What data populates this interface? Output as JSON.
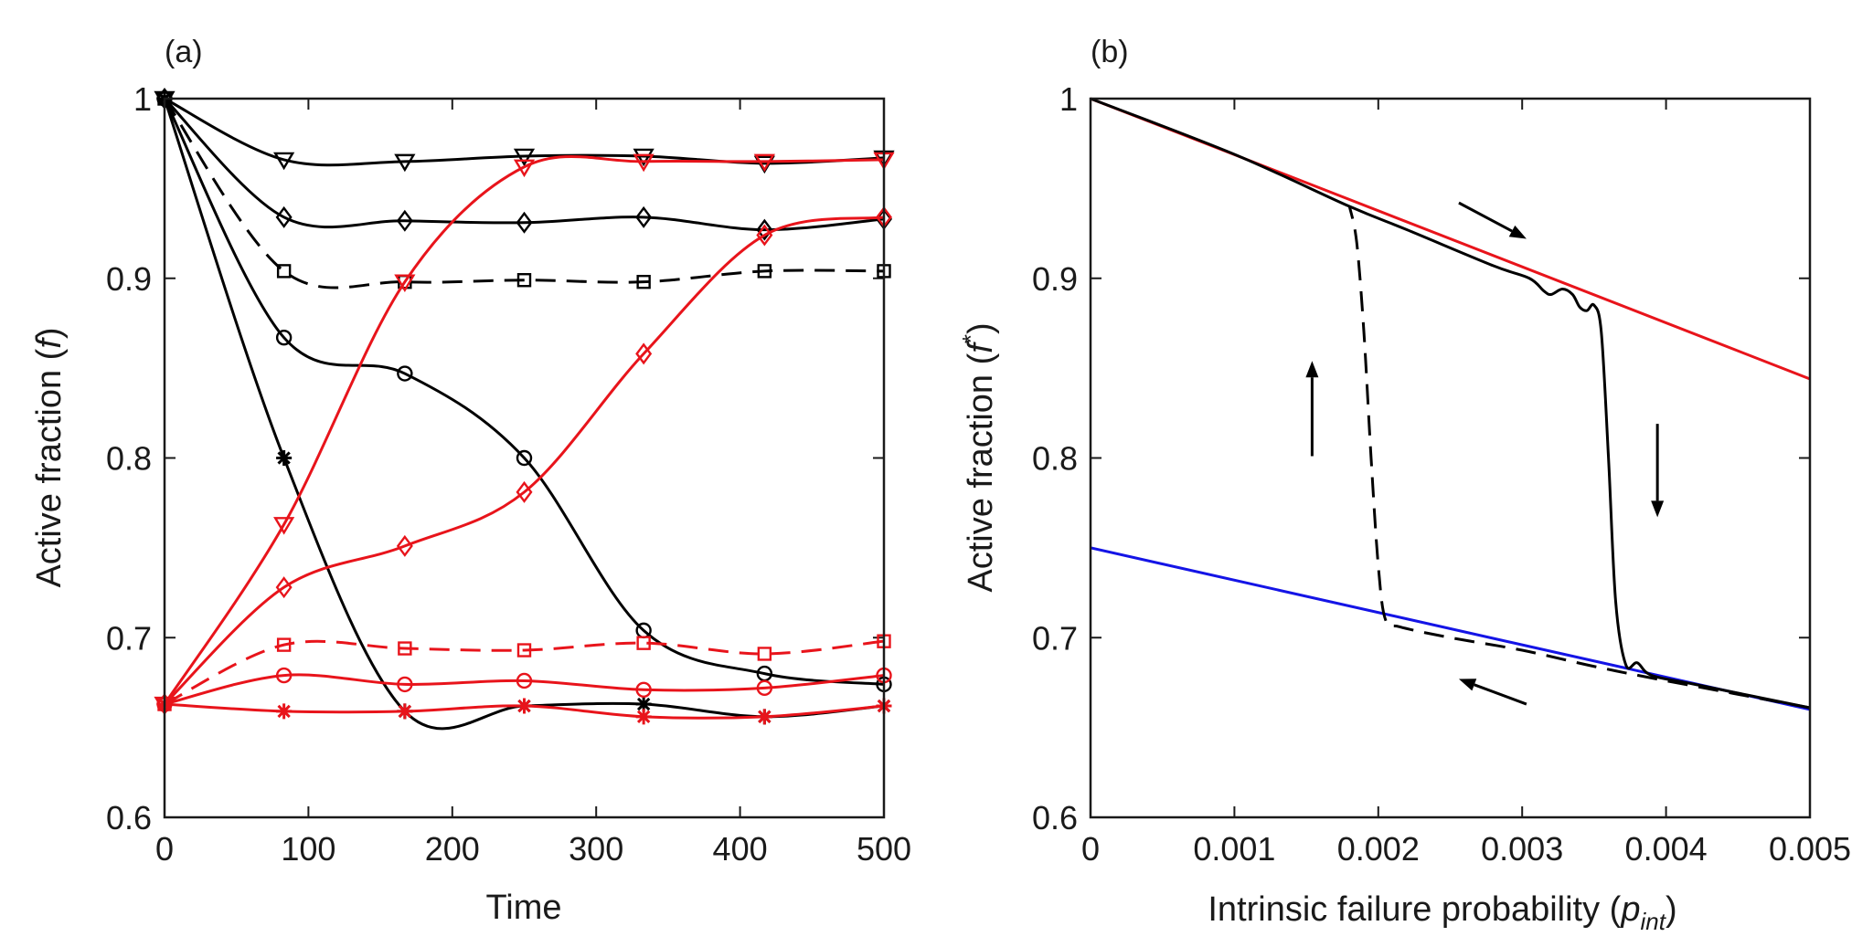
{
  "chart_data": [
    {
      "panel_label": "(a)",
      "type": "line",
      "xlabel": "Time",
      "ylabel": "Active fraction (",
      "ylabel_symbol": "f",
      "ylabel_close": ")",
      "xlim": [
        0,
        500
      ],
      "ylim": [
        0.6,
        1.0
      ],
      "xticks": [
        0,
        100,
        200,
        300,
        400,
        500
      ],
      "yticks": [
        0.6,
        0.7,
        0.8,
        0.9,
        1.0
      ],
      "xtick_labels": [
        "0",
        "100",
        "200",
        "300",
        "400",
        "500"
      ],
      "ytick_labels": [
        "0.6",
        "0.7",
        "0.8",
        "0.9",
        "1"
      ],
      "series": [
        {
          "name": "black-triangle",
          "color": "#000000",
          "marker": "triangle-down",
          "dashed": false,
          "x": [
            0,
            83,
            167,
            250,
            333,
            417,
            500
          ],
          "y": [
            1.0,
            0.966,
            0.965,
            0.968,
            0.968,
            0.964,
            0.967
          ]
        },
        {
          "name": "black-diamond",
          "color": "#000000",
          "marker": "diamond",
          "dashed": false,
          "x": [
            0,
            83,
            167,
            250,
            333,
            417,
            500
          ],
          "y": [
            1.0,
            0.934,
            0.932,
            0.931,
            0.934,
            0.927,
            0.933
          ]
        },
        {
          "name": "black-square",
          "color": "#000000",
          "marker": "square",
          "dashed": true,
          "x": [
            0,
            83,
            167,
            250,
            333,
            417,
            500
          ],
          "y": [
            1.0,
            0.904,
            0.898,
            0.899,
            0.898,
            0.904,
            0.904
          ]
        },
        {
          "name": "black-circle",
          "color": "#000000",
          "marker": "circle",
          "dashed": false,
          "x": [
            0,
            83,
            167,
            250,
            333,
            417,
            500
          ],
          "y": [
            1.0,
            0.867,
            0.847,
            0.8,
            0.704,
            0.68,
            0.674
          ]
        },
        {
          "name": "black-star",
          "color": "#000000",
          "marker": "asterisk",
          "dashed": false,
          "x": [
            0,
            83,
            167,
            250,
            333,
            417,
            500
          ],
          "y": [
            1.0,
            0.8,
            0.659,
            0.662,
            0.663,
            0.656,
            0.662
          ]
        },
        {
          "name": "red-triangle",
          "color": "#e8141b",
          "marker": "triangle-down",
          "dashed": false,
          "x": [
            0,
            83,
            167,
            250,
            333,
            417,
            500
          ],
          "y": [
            0.663,
            0.763,
            0.898,
            0.962,
            0.965,
            0.965,
            0.966
          ]
        },
        {
          "name": "red-diamond",
          "color": "#e8141b",
          "marker": "diamond",
          "dashed": false,
          "x": [
            0,
            83,
            167,
            250,
            333,
            417,
            500
          ],
          "y": [
            0.663,
            0.728,
            0.751,
            0.781,
            0.858,
            0.924,
            0.934
          ]
        },
        {
          "name": "red-square",
          "color": "#e8141b",
          "marker": "square",
          "dashed": true,
          "x": [
            0,
            83,
            167,
            250,
            333,
            417,
            500
          ],
          "y": [
            0.663,
            0.696,
            0.694,
            0.693,
            0.697,
            0.691,
            0.698
          ]
        },
        {
          "name": "red-circle",
          "color": "#e8141b",
          "marker": "circle",
          "dashed": false,
          "x": [
            0,
            83,
            167,
            250,
            333,
            417,
            500
          ],
          "y": [
            0.663,
            0.679,
            0.674,
            0.676,
            0.671,
            0.672,
            0.679
          ]
        },
        {
          "name": "red-star",
          "color": "#e8141b",
          "marker": "asterisk",
          "dashed": false,
          "x": [
            0,
            83,
            167,
            250,
            333,
            417,
            500
          ],
          "y": [
            0.663,
            0.659,
            0.659,
            0.662,
            0.656,
            0.656,
            0.662
          ]
        }
      ]
    },
    {
      "panel_label": "(b)",
      "type": "line",
      "xlabel": "Intrinsic failure probability (",
      "xlabel_symbol": "p",
      "xlabel_subscript": "int",
      "xlabel_close": ")",
      "ylabel": "Active fraction (",
      "ylabel_symbol": "f",
      "ylabel_superscript": "*",
      "ylabel_close": ")",
      "xlim": [
        0,
        0.005
      ],
      "ylim": [
        0.6,
        1.0
      ],
      "xticks": [
        0,
        0.001,
        0.002,
        0.003,
        0.004,
        0.005
      ],
      "yticks": [
        0.6,
        0.7,
        0.8,
        0.9,
        1.0
      ],
      "xtick_labels": [
        "0",
        "0.001",
        "0.002",
        "0.003",
        "0.004",
        "0.005"
      ],
      "ytick_labels": [
        "0.6",
        "0.7",
        "0.8",
        "0.9",
        "1"
      ],
      "series": [
        {
          "name": "red-line",
          "color": "#e8141b",
          "dashed": false,
          "x": [
            0,
            0.005
          ],
          "y": [
            1.0,
            0.844
          ]
        },
        {
          "name": "blue-line",
          "color": "#1414e6",
          "dashed": false,
          "x": [
            0,
            0.005
          ],
          "y": [
            0.75,
            0.66
          ]
        },
        {
          "name": "black-solid-forward",
          "color": "#000000",
          "dashed": false,
          "x": [
            0,
            0.001,
            0.0018,
            0.0022,
            0.0028,
            0.00305,
            0.00315,
            0.0032,
            0.00328,
            0.00335,
            0.0034,
            0.00345,
            0.0035,
            0.00355,
            0.0036,
            0.00365,
            0.00372,
            0.0038,
            0.0039,
            0.0042,
            0.005
          ],
          "y": [
            1.0,
            0.969,
            0.94,
            0.927,
            0.907,
            0.9,
            0.893,
            0.891,
            0.894,
            0.891,
            0.884,
            0.882,
            0.885,
            0.87,
            0.8,
            0.72,
            0.685,
            0.686,
            0.679,
            0.674,
            0.661
          ]
        },
        {
          "name": "black-dashed-backward",
          "color": "#000000",
          "dashed": true,
          "x": [
            0.005,
            0.004,
            0.0035,
            0.003,
            0.0025,
            0.00215,
            0.00205,
            0.002,
            0.00195,
            0.0019,
            0.00185,
            0.0018
          ],
          "y": [
            0.661,
            0.676,
            0.684,
            0.693,
            0.7,
            0.706,
            0.71,
            0.74,
            0.8,
            0.87,
            0.92,
            0.94
          ]
        }
      ],
      "annotations": [
        {
          "name": "arrow-right",
          "direction": "right",
          "from": [
            0.00256,
            0.942
          ],
          "to": [
            0.00303,
            0.922
          ]
        },
        {
          "name": "arrow-down",
          "direction": "down",
          "from": [
            0.00394,
            0.819
          ],
          "to": [
            0.00394,
            0.767
          ]
        },
        {
          "name": "arrow-up",
          "direction": "up",
          "from": [
            0.00154,
            0.801
          ],
          "to": [
            0.00154,
            0.854
          ]
        },
        {
          "name": "arrow-left",
          "direction": "left",
          "from": [
            0.00303,
            0.663
          ],
          "to": [
            0.00256,
            0.677
          ]
        }
      ]
    }
  ]
}
